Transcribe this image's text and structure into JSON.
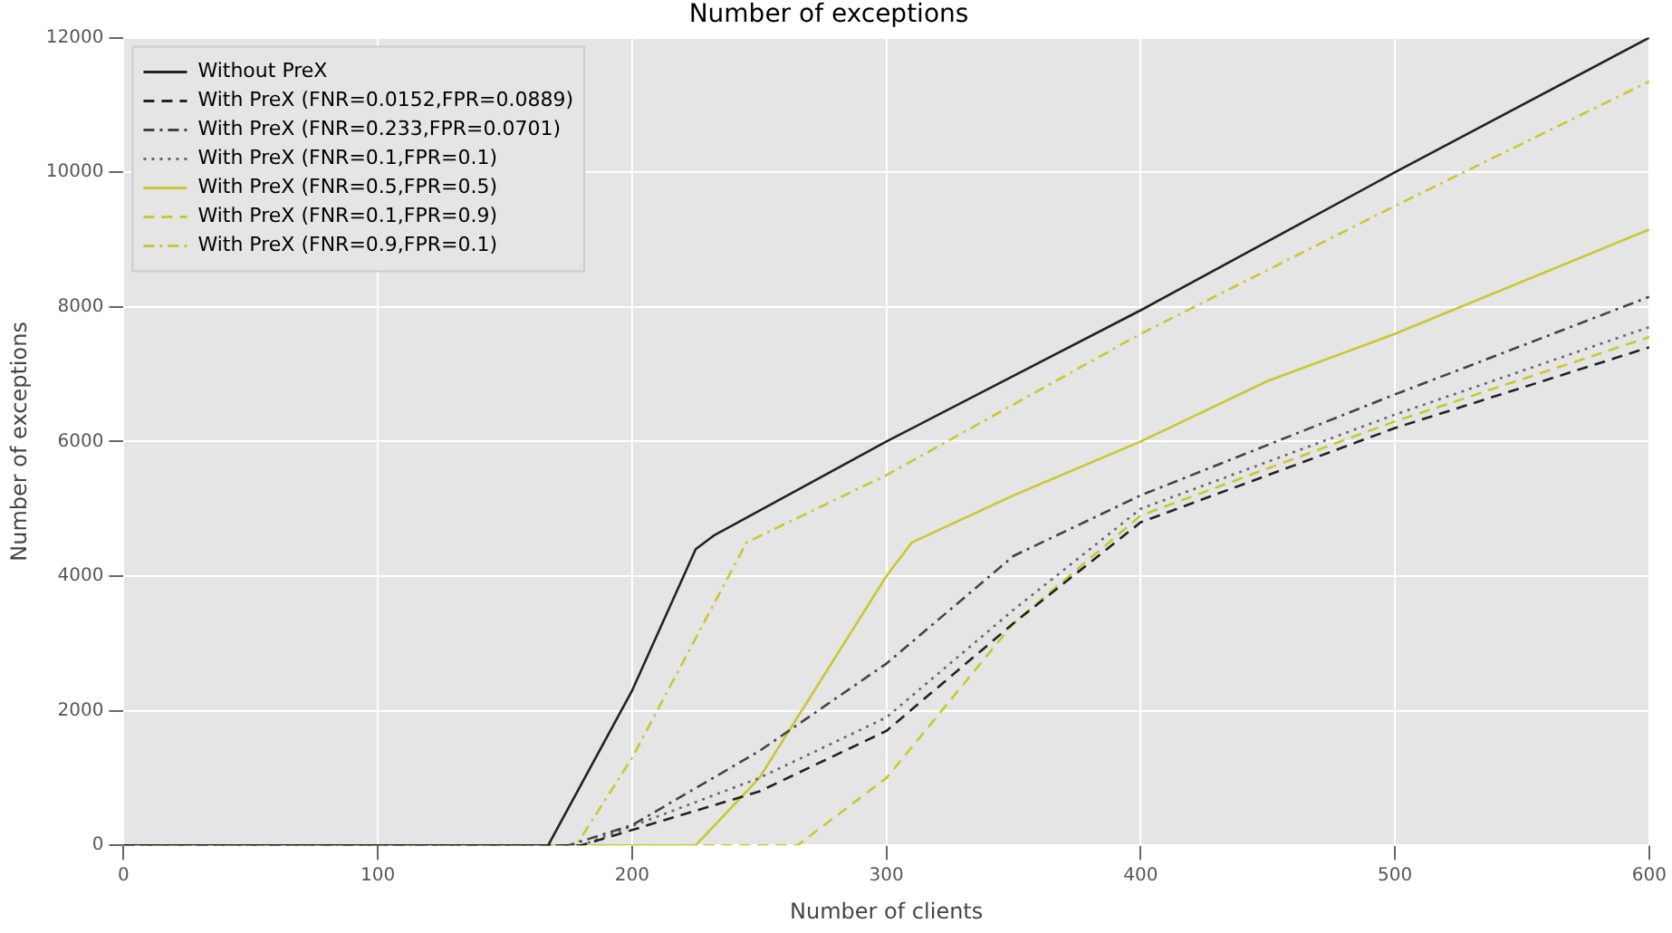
{
  "chart_data": {
    "type": "line",
    "title": "Number of exceptions",
    "xlabel": "Number of clients",
    "ylabel": "Number of exceptions",
    "xlim": [
      0,
      600
    ],
    "ylim": [
      0,
      12000
    ],
    "xticks": [
      0,
      100,
      200,
      300,
      400,
      500,
      600
    ],
    "yticks": [
      0,
      2000,
      4000,
      6000,
      8000,
      10000,
      12000
    ],
    "grid": true,
    "legend": "top left",
    "marker": "none",
    "series": [
      {
        "name": "Without PreX",
        "color": "#222222",
        "line_style": "solid",
        "x": [
          0,
          167,
          200,
          225,
          232,
          300,
          400,
          500,
          600
        ],
        "values": [
          0,
          0,
          2300,
          4400,
          4600,
          6000,
          7950,
          10000,
          12000
        ]
      },
      {
        "name": "With PreX (FNR=0.0152,FPR=0.0889)",
        "color": "#222222",
        "line_style": "dashed",
        "x": [
          0,
          180,
          250,
          300,
          350,
          400,
          500,
          600
        ],
        "values": [
          0,
          0,
          800,
          1700,
          3300,
          4800,
          6200,
          7400
        ]
      },
      {
        "name": "With PreX (FNR=0.233,FPR=0.0701)",
        "color": "#444444",
        "line_style": "dashdot",
        "x": [
          0,
          175,
          200,
          250,
          300,
          350,
          400,
          500,
          600
        ],
        "values": [
          0,
          0,
          300,
          1400,
          2700,
          4300,
          5200,
          6700,
          8150
        ]
      },
      {
        "name": "With PreX (FNR=0.1,FPR=0.1)",
        "color": "#666666",
        "line_style": "dotted",
        "x": [
          0,
          180,
          250,
          300,
          350,
          400,
          500,
          600
        ],
        "values": [
          0,
          0,
          1000,
          1900,
          3500,
          5000,
          6400,
          7700
        ]
      },
      {
        "name": "With PreX (FNR=0.5,FPR=0.5)",
        "color": "#c8c832",
        "line_style": "solid",
        "x": [
          0,
          225,
          250,
          270,
          300,
          310,
          350,
          400,
          450,
          500,
          600
        ],
        "values": [
          0,
          0,
          1000,
          2200,
          4000,
          4500,
          5200,
          6000,
          6900,
          7600,
          9150
        ]
      },
      {
        "name": "With PreX (FNR=0.1,FPR=0.9)",
        "color": "#c8c832",
        "line_style": "dashed",
        "x": [
          0,
          265,
          300,
          350,
          400,
          500,
          600
        ],
        "values": [
          0,
          0,
          1000,
          3300,
          4900,
          6300,
          7550
        ]
      },
      {
        "name": "With PreX (FNR=0.9,FPR=0.1)",
        "color": "#c8c832",
        "line_style": "dashdot",
        "x": [
          0,
          178,
          200,
          245,
          300,
          400,
          500,
          600
        ],
        "values": [
          0,
          0,
          1300,
          4500,
          5500,
          7600,
          9500,
          11350
        ]
      }
    ]
  }
}
